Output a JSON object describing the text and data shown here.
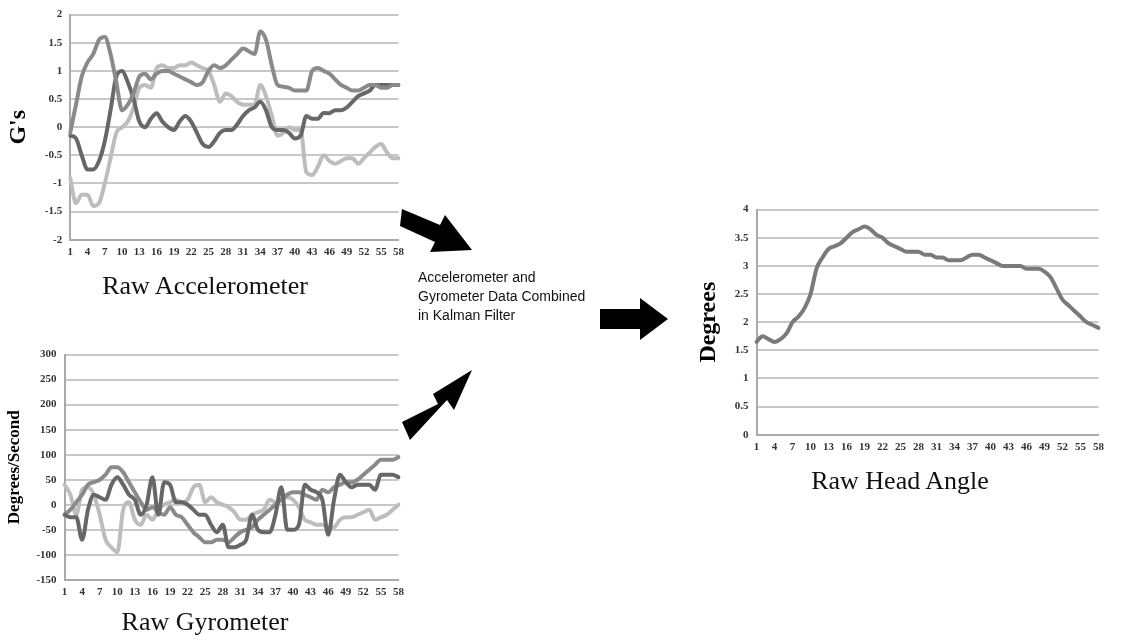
{
  "chart_data": [
    {
      "type": "line",
      "title": "Raw Accelerometer",
      "ylabel": "G's",
      "ylim": [
        -2,
        2
      ],
      "yticks": [
        -2,
        -1.5,
        -1,
        -0.5,
        0,
        0.5,
        1,
        1.5,
        2
      ],
      "grid": "y",
      "marker": "none",
      "categories": [
        "1",
        null,
        null,
        "4",
        null,
        null,
        "7",
        null,
        null,
        "10",
        null,
        null,
        "13",
        null,
        null,
        "16",
        null,
        null,
        "19",
        null,
        null,
        "22",
        null,
        null,
        "25",
        null,
        null,
        "28",
        null,
        null,
        "31",
        null,
        null,
        "34",
        null,
        null,
        "37",
        null,
        null,
        "40",
        null,
        null,
        "43",
        null,
        null,
        "46",
        null,
        null,
        "49",
        null,
        null,
        "52",
        null,
        null,
        "55",
        null,
        null,
        "58"
      ],
      "series": [
        {
          "color": "#8a8a8a",
          "values": [
            -0.1,
            0.4,
            0.9,
            1.15,
            1.3,
            1.55,
            1.6,
            1.3,
            0.8,
            0.3,
            0.4,
            0.6,
            0.9,
            0.95,
            0.85,
            0.95,
            1.0,
            1.0,
            0.95,
            0.9,
            0.85,
            0.8,
            0.75,
            0.8,
            1.0,
            1.1,
            1.05,
            1.1,
            1.2,
            1.3,
            1.4,
            1.35,
            1.3,
            1.7,
            1.55,
            1.1,
            0.75,
            0.72,
            0.7,
            0.65,
            0.65,
            0.65,
            1.0,
            1.05,
            1.0,
            0.95,
            0.85,
            0.75,
            0.7,
            0.65,
            0.65,
            0.7,
            0.75,
            0.75,
            0.7,
            0.7,
            0.75,
            0.75
          ]
        },
        {
          "color": "#676767",
          "values": [
            -0.15,
            -0.2,
            -0.5,
            -0.75,
            -0.75,
            -0.6,
            -0.25,
            0.3,
            0.9,
            1.0,
            0.8,
            0.5,
            0.1,
            0.0,
            0.15,
            0.25,
            0.1,
            0.0,
            -0.05,
            0.1,
            0.2,
            0.1,
            -0.1,
            -0.3,
            -0.35,
            -0.25,
            -0.1,
            -0.05,
            -0.05,
            0.05,
            0.2,
            0.3,
            0.35,
            0.45,
            0.3,
            0.0,
            -0.05,
            -0.05,
            -0.1,
            -0.2,
            -0.15,
            0.2,
            0.15,
            0.15,
            0.25,
            0.25,
            0.3,
            0.3,
            0.35,
            0.45,
            0.55,
            0.6,
            0.65,
            0.75,
            0.75,
            0.75,
            0.75,
            0.75
          ]
        },
        {
          "color": "#bdbdbd",
          "values": [
            -0.9,
            -1.35,
            -1.2,
            -1.2,
            -1.4,
            -1.35,
            -1.0,
            -0.55,
            -0.1,
            0.0,
            0.1,
            0.35,
            0.7,
            0.75,
            0.7,
            1.05,
            1.1,
            1.05,
            1.05,
            1.1,
            1.1,
            1.15,
            1.1,
            1.05,
            1.0,
            0.75,
            0.45,
            0.6,
            0.55,
            0.45,
            0.4,
            0.4,
            0.4,
            0.75,
            0.55,
            0.2,
            -0.15,
            -0.1,
            0.0,
            -0.05,
            -0.05,
            -0.8,
            -0.85,
            -0.7,
            -0.5,
            -0.6,
            -0.65,
            -0.6,
            -0.55,
            -0.55,
            -0.65,
            -0.55,
            -0.45,
            -0.35,
            -0.3,
            -0.45,
            -0.55,
            -0.55
          ]
        }
      ]
    },
    {
      "type": "line",
      "title": "Raw Gyrometer",
      "ylabel": "Degrees/Second",
      "ylim": [
        -150,
        300
      ],
      "yticks": [
        -150,
        -100,
        -50,
        0,
        50,
        100,
        150,
        200,
        250,
        300
      ],
      "grid": "y",
      "marker": "none",
      "categories": [
        "1",
        null,
        null,
        "4",
        null,
        null,
        "7",
        null,
        null,
        "10",
        null,
        null,
        "13",
        null,
        null,
        "16",
        null,
        null,
        "19",
        null,
        null,
        "22",
        null,
        null,
        "25",
        null,
        null,
        "28",
        null,
        null,
        "31",
        null,
        null,
        "34",
        null,
        null,
        "37",
        null,
        null,
        "40",
        null,
        null,
        "43",
        null,
        null,
        "46",
        null,
        null,
        "49",
        null,
        null,
        "52",
        null,
        null,
        "55",
        null,
        null,
        "58"
      ],
      "series": [
        {
          "color": "#676767",
          "values": [
            -20,
            -25,
            -25,
            -70,
            -10,
            20,
            15,
            10,
            40,
            55,
            40,
            20,
            10,
            -20,
            0,
            55,
            -20,
            45,
            40,
            5,
            5,
            0,
            -10,
            -20,
            -20,
            -40,
            -55,
            -40,
            -85,
            -85,
            -80,
            -70,
            -20,
            -50,
            -55,
            -55,
            -20,
            35,
            -50,
            -50,
            -40,
            40,
            30,
            25,
            10,
            -60,
            10,
            60,
            45,
            35,
            40,
            40,
            40,
            30,
            60,
            60,
            60,
            55
          ]
        },
        {
          "color": "#8a8a8a",
          "values": [
            -20,
            -10,
            5,
            20,
            40,
            45,
            50,
            60,
            75,
            75,
            65,
            45,
            25,
            5,
            -10,
            -5,
            -15,
            -20,
            -5,
            -20,
            -25,
            -40,
            -55,
            -65,
            -75,
            -75,
            -70,
            -70,
            -75,
            -65,
            -55,
            -50,
            -45,
            -30,
            -20,
            -10,
            0,
            10,
            20,
            25,
            25,
            20,
            15,
            10,
            30,
            25,
            35,
            40,
            45,
            45,
            50,
            60,
            70,
            80,
            90,
            90,
            90,
            95
          ]
        },
        {
          "color": "#bdbdbd",
          "values": [
            40,
            20,
            -20,
            30,
            35,
            20,
            -20,
            -70,
            -85,
            -95,
            -10,
            5,
            -30,
            -40,
            -20,
            -30,
            -10,
            0,
            5,
            10,
            5,
            10,
            35,
            40,
            5,
            15,
            5,
            0,
            -5,
            -15,
            -30,
            -30,
            -20,
            -15,
            -10,
            10,
            5,
            10,
            15,
            10,
            -5,
            -30,
            -35,
            -40,
            -40,
            -45,
            -45,
            -30,
            -25,
            -25,
            -20,
            -15,
            -10,
            -30,
            -25,
            -20,
            -10,
            0
          ]
        }
      ]
    },
    {
      "type": "line",
      "title": "Raw Head Angle",
      "ylabel": "Degrees",
      "ylim": [
        0,
        4
      ],
      "yticks": [
        0,
        0.5,
        1,
        1.5,
        2,
        2.5,
        3,
        3.5,
        4
      ],
      "grid": "y",
      "marker": "none",
      "annotations": [
        "Accelerometer and Gyrometer Data Combined in Kalman Filter"
      ],
      "categories": [
        "1",
        null,
        null,
        "4",
        null,
        null,
        "7",
        null,
        null,
        "10",
        null,
        null,
        "13",
        null,
        null,
        "16",
        null,
        null,
        "19",
        null,
        null,
        "22",
        null,
        null,
        "25",
        null,
        null,
        "28",
        null,
        null,
        "31",
        null,
        null,
        "34",
        null,
        null,
        "37",
        null,
        null,
        "40",
        null,
        null,
        "43",
        null,
        null,
        "46",
        null,
        null,
        "49",
        null,
        null,
        "52",
        null,
        null,
        "55",
        null,
        null,
        "58"
      ],
      "series": [
        {
          "color": "#7a7a7a",
          "values": [
            1.65,
            1.75,
            1.7,
            1.65,
            1.7,
            1.8,
            2.0,
            2.1,
            2.25,
            2.5,
            2.95,
            3.15,
            3.3,
            3.35,
            3.4,
            3.5,
            3.6,
            3.65,
            3.7,
            3.65,
            3.55,
            3.5,
            3.4,
            3.35,
            3.3,
            3.25,
            3.25,
            3.25,
            3.2,
            3.2,
            3.15,
            3.15,
            3.1,
            3.1,
            3.1,
            3.15,
            3.2,
            3.2,
            3.15,
            3.1,
            3.05,
            3.0,
            3.0,
            3.0,
            3.0,
            2.95,
            2.95,
            2.95,
            2.9,
            2.8,
            2.6,
            2.4,
            2.3,
            2.2,
            2.1,
            2.0,
            1.95,
            1.9
          ]
        }
      ]
    }
  ]
}
